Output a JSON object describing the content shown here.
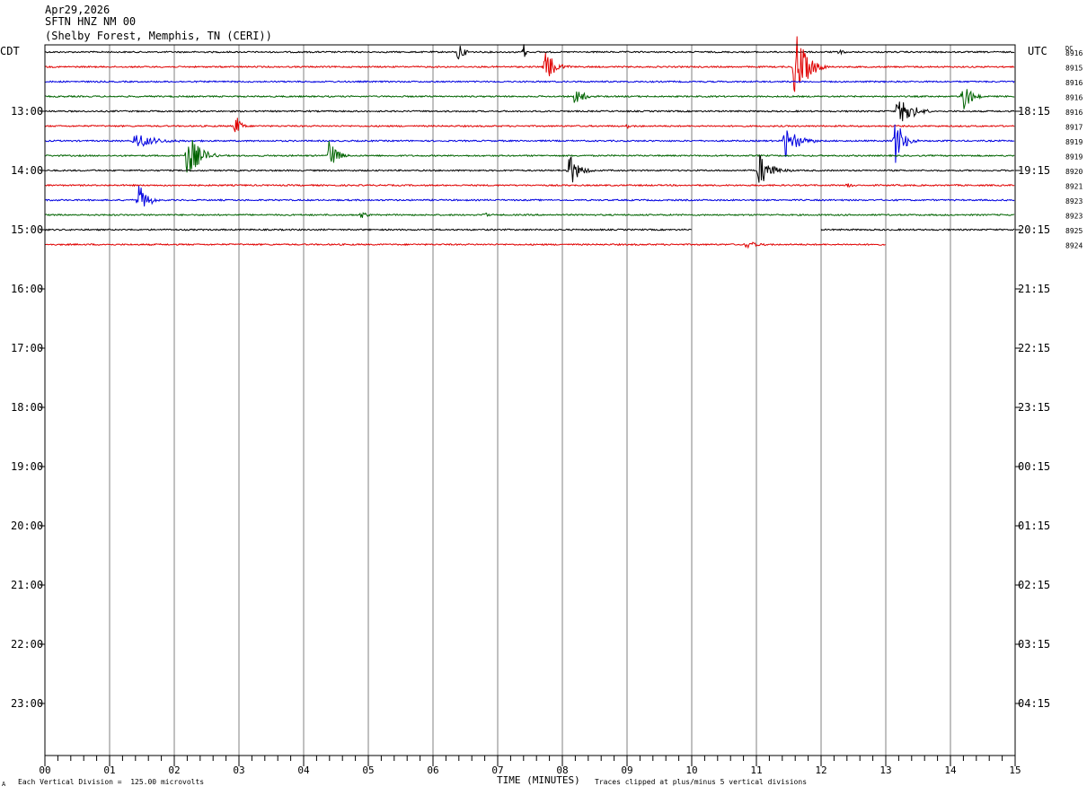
{
  "header": {
    "date": "Apr29,2026",
    "station": "SFTN HNZ NM 00",
    "location": "(Shelby Forest, Memphis, TN (CERI))",
    "left_zone": "CDT",
    "right_zone": "UTC",
    "dc_label": "DC"
  },
  "footer": {
    "scale_note": "Each Vertical Division =  125.00 microvolts",
    "clip_note": "Traces clipped at plus/minus 5 vertical divisions",
    "corner_mark": "A"
  },
  "colors": {
    "trace_cycle": [
      "#000000",
      "#e00000",
      "#0000e0",
      "#006400"
    ],
    "grid": "#808080",
    "frame": "#000000"
  },
  "chart_data": {
    "type": "line",
    "title": "",
    "xlabel": "TIME (MINUTES)",
    "ylabel": "",
    "xlim": [
      0,
      15
    ],
    "x_ticks": [
      "00",
      "01",
      "02",
      "03",
      "04",
      "05",
      "06",
      "07",
      "08",
      "09",
      "10",
      "11",
      "12",
      "13",
      "14",
      "15"
    ],
    "left_hour_labels": [
      "13:00",
      "14:00",
      "15:00",
      "16:00",
      "17:00",
      "18:00",
      "19:00",
      "20:00",
      "21:00",
      "22:00",
      "23:00"
    ],
    "right_hour_labels": [
      "18:15",
      "19:15",
      "20:15",
      "21:15",
      "22:15",
      "23:15",
      "00:15",
      "01:15",
      "02:15",
      "03:15",
      "04:15"
    ],
    "hour_label_rows": [
      4,
      8,
      12,
      16,
      20,
      24,
      28,
      32,
      36,
      40,
      44
    ],
    "total_rows": 48,
    "traces": [
      {
        "row": 0,
        "dc": "8916",
        "start_min": 0,
        "end_min": 15,
        "events": [
          {
            "t": 6.4,
            "amp": 14,
            "dur": 0.2
          },
          {
            "t": 7.4,
            "amp": 12,
            "dur": 0.1
          },
          {
            "t": 12.3,
            "amp": 6,
            "dur": 0.1
          }
        ]
      },
      {
        "row": 1,
        "dc": "8915",
        "start_min": 0,
        "end_min": 15,
        "events": [
          {
            "t": 7.75,
            "amp": 20,
            "dur": 0.4
          },
          {
            "t": 11.6,
            "amp": 45,
            "dur": 0.5
          }
        ]
      },
      {
        "row": 2,
        "dc": "8916",
        "start_min": 0,
        "end_min": 15,
        "events": []
      },
      {
        "row": 3,
        "dc": "8916",
        "start_min": 0,
        "end_min": 15,
        "events": [
          {
            "t": 8.2,
            "amp": 10,
            "dur": 0.4
          },
          {
            "t": 14.2,
            "amp": 22,
            "dur": 0.3
          }
        ]
      },
      {
        "row": 4,
        "dc": "8916",
        "start_min": 0,
        "end_min": 15,
        "events": [
          {
            "t": 13.2,
            "amp": 24,
            "dur": 0.5
          }
        ]
      },
      {
        "row": 5,
        "dc": "8917",
        "start_min": 0,
        "end_min": 15,
        "events": [
          {
            "t": 2.95,
            "amp": 14,
            "dur": 0.2
          },
          {
            "t": 9.0,
            "amp": 3,
            "dur": 0.2
          }
        ]
      },
      {
        "row": 6,
        "dc": "8919",
        "start_min": 0,
        "end_min": 15,
        "events": [
          {
            "t": 1.4,
            "amp": 10,
            "dur": 0.8
          },
          {
            "t": 11.45,
            "amp": 22,
            "dur": 0.5
          },
          {
            "t": 13.15,
            "amp": 26,
            "dur": 0.4
          }
        ]
      },
      {
        "row": 7,
        "dc": "8919",
        "start_min": 0,
        "end_min": 15,
        "events": [
          {
            "t": 2.2,
            "amp": 30,
            "dur": 0.5
          },
          {
            "t": 4.4,
            "amp": 20,
            "dur": 0.3
          }
        ]
      },
      {
        "row": 8,
        "dc": "8920",
        "start_min": 0,
        "end_min": 15,
        "events": [
          {
            "t": 8.1,
            "amp": 22,
            "dur": 0.4
          },
          {
            "t": 11.05,
            "amp": 20,
            "dur": 0.5
          }
        ]
      },
      {
        "row": 9,
        "dc": "8921",
        "start_min": 0,
        "end_min": 15,
        "events": [
          {
            "t": 12.4,
            "amp": 4,
            "dur": 0.2
          }
        ]
      },
      {
        "row": 10,
        "dc": "8923",
        "start_min": 0,
        "end_min": 15,
        "events": [
          {
            "t": 1.45,
            "amp": 18,
            "dur": 0.4
          }
        ]
      },
      {
        "row": 11,
        "dc": "8923",
        "start_min": 0,
        "end_min": 15,
        "events": [
          {
            "t": 4.9,
            "amp": 4,
            "dur": 0.2
          },
          {
            "t": 6.8,
            "amp": 3,
            "dur": 0.2
          }
        ]
      },
      {
        "row": 12,
        "dc": "8925",
        "start_min": 0,
        "end_min": 15,
        "gap": [
          10.0,
          12.0
        ],
        "events": []
      },
      {
        "row": 13,
        "dc": "8924",
        "start_min": 0,
        "end_min": 13.0,
        "events": [
          {
            "t": 10.85,
            "amp": 5,
            "dur": 0.5
          }
        ]
      }
    ]
  }
}
